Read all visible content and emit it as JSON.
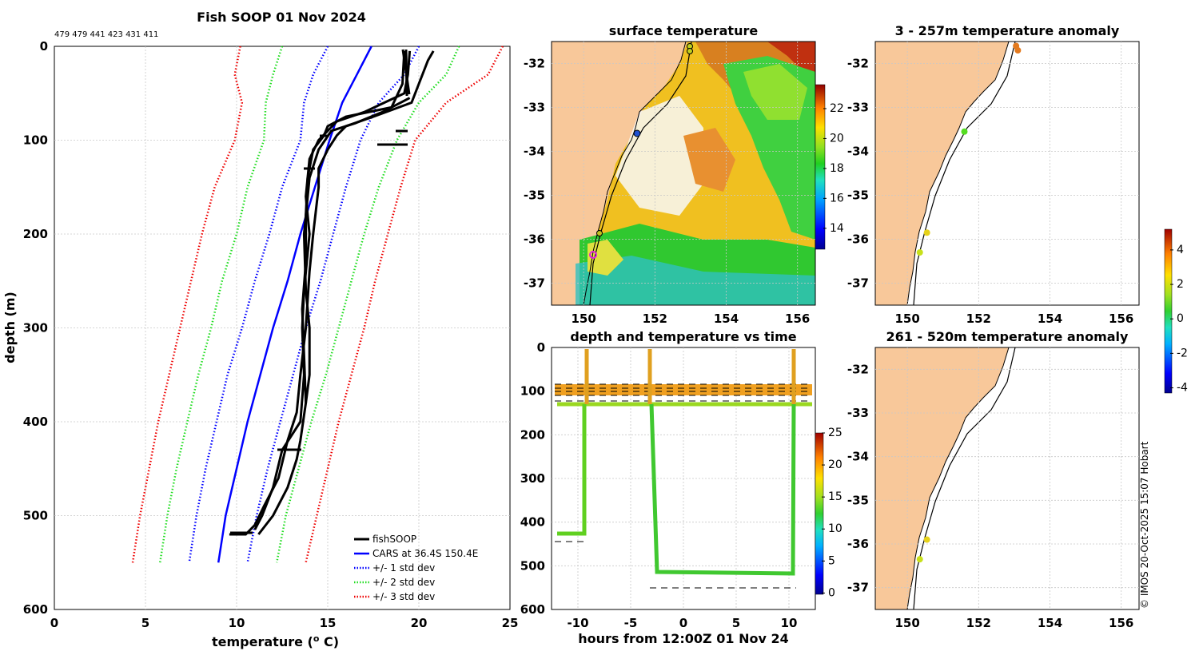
{
  "header": {
    "main_title": "Fish SOOP 01 Nov 2024",
    "drop_ids": "479 479 441 423 431 411",
    "copyright": "© IMOS 20-Oct-2025 15:07 Hobart"
  },
  "colors": {
    "land": "#f8c89a",
    "fish": "#000000",
    "cars": "#0000ff",
    "std1": "#0000ff",
    "std2": "#22dd22",
    "std3": "#ee0000"
  },
  "chart_data": [
    {
      "id": "profile",
      "type": "line",
      "title": "Fish SOOP 01 Nov 2024",
      "xlabel": "temperature (",
      "xlabel_sup": "o",
      "xlabel_tail": " C)",
      "ylabel": "depth (m)",
      "xlim": [
        0,
        25
      ],
      "ylim": [
        600,
        0
      ],
      "xticks": [
        0,
        5,
        10,
        15,
        20,
        25
      ],
      "yticks": [
        0,
        100,
        200,
        300,
        400,
        500,
        600
      ],
      "legend": [
        "fishSOOP",
        "CARS at 36.4S 150.4E",
        "+/- 1 std dev",
        "+/- 2 std dev",
        "+/- 3 std dev"
      ],
      "series": [
        {
          "name": "CARS at 36.4S 150.4E",
          "style": "solid",
          "color": "#0000ff",
          "points": [
            [
              17.4,
              0
            ],
            [
              16.6,
              30
            ],
            [
              15.8,
              60
            ],
            [
              15.1,
              100
            ],
            [
              14.3,
              150
            ],
            [
              13.5,
              200
            ],
            [
              12.8,
              250
            ],
            [
              12.0,
              300
            ],
            [
              11.3,
              350
            ],
            [
              10.6,
              400
            ],
            [
              10.0,
              450
            ],
            [
              9.4,
              500
            ],
            [
              9.0,
              550
            ]
          ]
        },
        {
          "name": "+/- 1 std dev (low)",
          "style": "dotted",
          "color": "#0000ff",
          "points": [
            [
              15.0,
              0
            ],
            [
              14.2,
              30
            ],
            [
              13.7,
              60
            ],
            [
              13.5,
              100
            ],
            [
              12.5,
              150
            ],
            [
              11.8,
              200
            ],
            [
              11.0,
              250
            ],
            [
              10.3,
              300
            ],
            [
              9.5,
              350
            ],
            [
              8.9,
              400
            ],
            [
              8.3,
              450
            ],
            [
              7.8,
              500
            ],
            [
              7.4,
              550
            ]
          ]
        },
        {
          "name": "+/- 1 std dev (high)",
          "style": "dotted",
          "color": "#0000ff",
          "points": [
            [
              20.0,
              0
            ],
            [
              19.2,
              30
            ],
            [
              17.8,
              60
            ],
            [
              16.8,
              100
            ],
            [
              16.0,
              150
            ],
            [
              15.3,
              200
            ],
            [
              14.6,
              250
            ],
            [
              13.8,
              300
            ],
            [
              13.1,
              350
            ],
            [
              12.4,
              400
            ],
            [
              11.7,
              450
            ],
            [
              11.1,
              500
            ],
            [
              10.6,
              550
            ]
          ]
        },
        {
          "name": "+/- 2 std dev (low)",
          "style": "dotted",
          "color": "#22dd22",
          "points": [
            [
              12.5,
              0
            ],
            [
              12.0,
              30
            ],
            [
              11.6,
              60
            ],
            [
              11.5,
              100
            ],
            [
              10.6,
              150
            ],
            [
              10.0,
              200
            ],
            [
              9.2,
              250
            ],
            [
              8.6,
              300
            ],
            [
              7.9,
              350
            ],
            [
              7.3,
              400
            ],
            [
              6.7,
              450
            ],
            [
              6.2,
              500
            ],
            [
              5.8,
              550
            ]
          ]
        },
        {
          "name": "+/- 2 std dev (high)",
          "style": "dotted",
          "color": "#22dd22",
          "points": [
            [
              22.2,
              0
            ],
            [
              21.5,
              30
            ],
            [
              20.0,
              60
            ],
            [
              18.8,
              100
            ],
            [
              17.8,
              150
            ],
            [
              17.0,
              200
            ],
            [
              16.3,
              250
            ],
            [
              15.6,
              300
            ],
            [
              14.9,
              350
            ],
            [
              14.1,
              400
            ],
            [
              13.4,
              450
            ],
            [
              12.7,
              500
            ],
            [
              12.2,
              550
            ]
          ]
        },
        {
          "name": "+/- 3 std dev (low)",
          "style": "dotted",
          "color": "#ee0000",
          "points": [
            [
              10.2,
              0
            ],
            [
              9.9,
              30
            ],
            [
              10.3,
              60
            ],
            [
              9.9,
              100
            ],
            [
              8.8,
              150
            ],
            [
              8.1,
              200
            ],
            [
              7.5,
              250
            ],
            [
              6.9,
              300
            ],
            [
              6.3,
              350
            ],
            [
              5.7,
              400
            ],
            [
              5.2,
              450
            ],
            [
              4.7,
              500
            ],
            [
              4.3,
              550
            ]
          ]
        },
        {
          "name": "+/- 3 std dev (high)",
          "style": "dotted",
          "color": "#ee0000",
          "points": [
            [
              24.6,
              0
            ],
            [
              23.8,
              30
            ],
            [
              21.5,
              60
            ],
            [
              19.8,
              100
            ],
            [
              19.0,
              150
            ],
            [
              18.3,
              200
            ],
            [
              17.6,
              250
            ],
            [
              17.0,
              300
            ],
            [
              16.3,
              350
            ],
            [
              15.6,
              400
            ],
            [
              15.0,
              450
            ],
            [
              14.4,
              500
            ],
            [
              13.8,
              550
            ]
          ]
        },
        {
          "name": "fishSOOP cast 1",
          "style": "solid",
          "color": "#000000",
          "points": [
            [
              20.8,
              5
            ],
            [
              20.5,
              15
            ],
            [
              20.0,
              40
            ],
            [
              19.6,
              60
            ],
            [
              17.5,
              75
            ],
            [
              16.0,
              85
            ],
            [
              15.5,
              95
            ],
            [
              15.0,
              110
            ],
            [
              14.5,
              130
            ],
            [
              14.5,
              150
            ],
            [
              14.2,
              200
            ],
            [
              14.0,
              240
            ],
            [
              13.8,
              300
            ],
            [
              13.5,
              350
            ],
            [
              13.3,
              390
            ],
            [
              12.8,
              420
            ],
            [
              12.3,
              460
            ],
            [
              11.5,
              490
            ],
            [
              11.0,
              510
            ],
            [
              10.5,
              520
            ],
            [
              9.6,
              520
            ]
          ]
        },
        {
          "name": "fishSOOP cast 2",
          "style": "solid",
          "color": "#000000",
          "points": [
            [
              19.5,
              5
            ],
            [
              19.4,
              30
            ],
            [
              19.2,
              50
            ],
            [
              17.0,
              70
            ],
            [
              15.5,
              80
            ],
            [
              14.5,
              100
            ],
            [
              14.0,
              120
            ],
            [
              13.8,
              160
            ],
            [
              14.0,
              200
            ],
            [
              13.7,
              260
            ],
            [
              13.6,
              300
            ],
            [
              13.7,
              350
            ],
            [
              13.5,
              400
            ],
            [
              12.5,
              430
            ],
            [
              12.0,
              470
            ],
            [
              11.4,
              500
            ],
            [
              11.0,
              515
            ]
          ]
        },
        {
          "name": "fishSOOP cast 3",
          "style": "solid",
          "color": "#000000",
          "points": [
            [
              19.2,
              5
            ],
            [
              19.1,
              40
            ],
            [
              18.5,
              65
            ],
            [
              16.0,
              75
            ],
            [
              15.0,
              85
            ],
            [
              14.8,
              95
            ],
            [
              14.2,
              110
            ],
            [
              13.9,
              140
            ],
            [
              13.8,
              180
            ],
            [
              13.8,
              230
            ],
            [
              13.6,
              280
            ],
            [
              13.7,
              330
            ],
            [
              13.8,
              380
            ],
            [
              13.5,
              420
            ],
            [
              13.3,
              440
            ],
            [
              12.8,
              470
            ],
            [
              12.0,
              500
            ],
            [
              11.2,
              520
            ]
          ]
        },
        {
          "name": "fishSOOP cast 4",
          "style": "solid",
          "color": "#000000",
          "points": [
            [
              19.5,
              55
            ],
            [
              18.0,
              70
            ],
            [
              16.5,
              82
            ],
            [
              15.2,
              90
            ],
            [
              14.5,
              110
            ],
            [
              14.0,
              140
            ],
            [
              13.7,
              200
            ],
            [
              13.8,
              260
            ],
            [
              14.0,
              300
            ],
            [
              14.0,
              350
            ],
            [
              13.8,
              380
            ]
          ]
        }
      ]
    },
    {
      "id": "sst",
      "type": "heatmap",
      "title": "surface temperature",
      "xticks": [
        150,
        152,
        154,
        156
      ],
      "yticks": [
        -32,
        -33,
        -34,
        -35,
        -36,
        -37
      ],
      "colorbar_ticks": [
        14,
        16,
        18,
        20,
        22
      ]
    },
    {
      "id": "depth_time",
      "type": "scatter",
      "title": "depth and temperature vs time",
      "xlabel": "hours from 12:00Z 01 Nov 24",
      "xlim": [
        -12.5,
        12.5
      ],
      "ylim": [
        600,
        0
      ],
      "xticks": [
        -10,
        -5,
        0,
        5,
        10
      ],
      "yticks": [
        0,
        100,
        200,
        300,
        400,
        500,
        600
      ],
      "colorbar_ticks": [
        0,
        5,
        10,
        15,
        20,
        25
      ]
    },
    {
      "id": "anom_shallow",
      "type": "scatter",
      "title": "3 - 257m temperature anomaly",
      "xticks": [
        150,
        152,
        154,
        156
      ],
      "yticks": [
        -32,
        -33,
        -34,
        -35,
        -36,
        -37
      ],
      "points": [
        {
          "lon": 153.05,
          "lat": -31.6,
          "color": "#e37a1e"
        },
        {
          "lon": 153.1,
          "lat": -31.7,
          "color": "#e37a1e"
        },
        {
          "lon": 151.6,
          "lat": -33.55,
          "color": "#55dd22"
        },
        {
          "lon": 150.55,
          "lat": -35.85,
          "color": "#e6d21a"
        },
        {
          "lon": 150.35,
          "lat": -36.3,
          "color": "#c8e01a"
        }
      ]
    },
    {
      "id": "anom_deep",
      "type": "scatter",
      "title": "261 - 520m temperature anomaly",
      "xticks": [
        150,
        152,
        154,
        156
      ],
      "yticks": [
        -32,
        -33,
        -34,
        -35,
        -36,
        -37
      ],
      "points": [
        {
          "lon": 150.55,
          "lat": -35.9,
          "color": "#e6d21a"
        },
        {
          "lon": 150.35,
          "lat": -36.35,
          "color": "#c8e01a"
        }
      ]
    },
    {
      "id": "anom_colorbar",
      "type": "heatmap",
      "colorbar_ticks": [
        -4,
        -2,
        0,
        2,
        4
      ]
    }
  ]
}
